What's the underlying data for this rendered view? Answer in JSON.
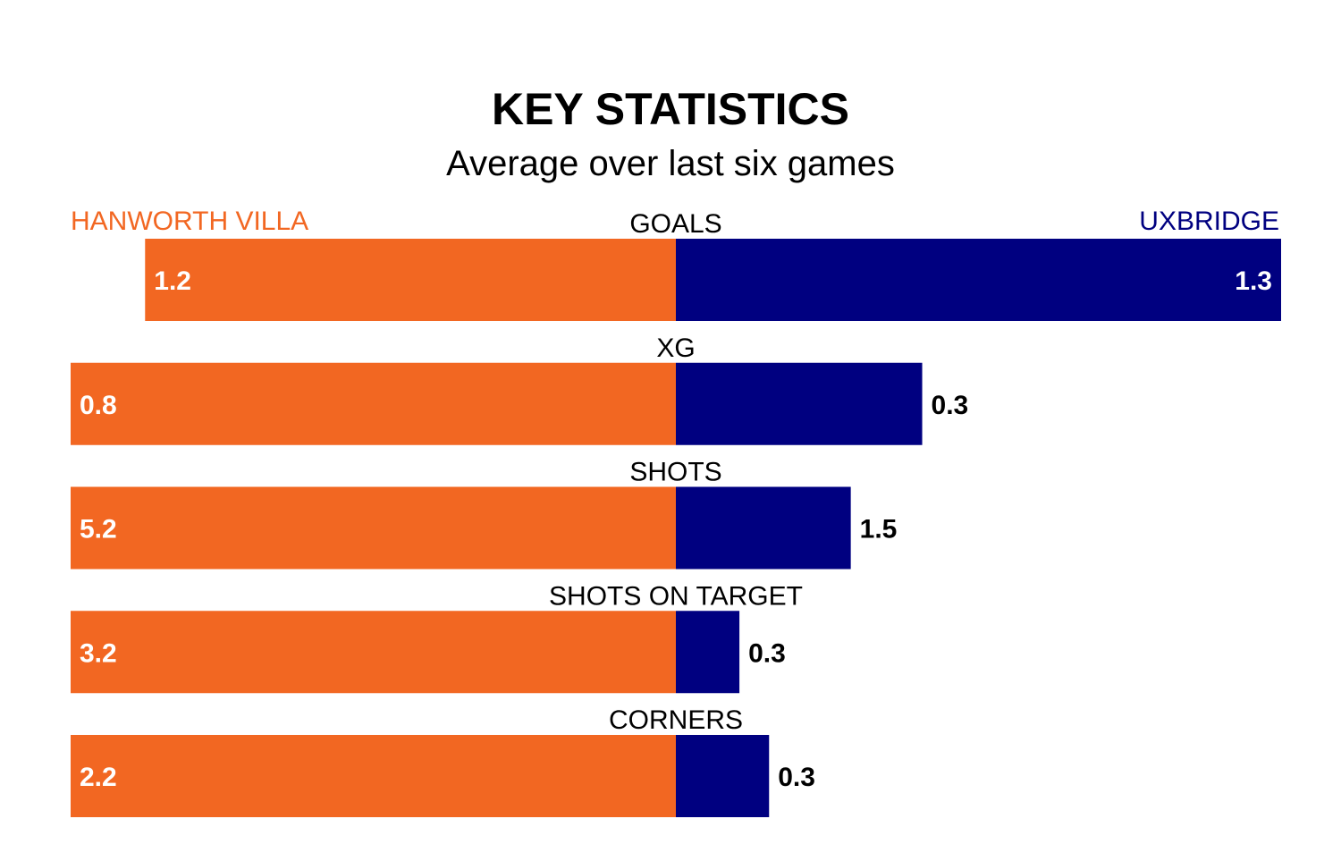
{
  "chart_data": {
    "type": "bar",
    "orientation": "diverging-horizontal",
    "title": "KEY STATISTICS",
    "subtitle": "Average over last six games",
    "categories": [
      "GOALS",
      "XG",
      "SHOTS",
      "SHOTS ON TARGET",
      "CORNERS"
    ],
    "series": [
      {
        "name": "HANWORTH VILLA",
        "color": "#f26722",
        "values": [
          1.2,
          0.8,
          5.2,
          3.2,
          2.2
        ],
        "labels": [
          "1.2",
          "0.8",
          "5.2",
          "3.2",
          "2.2"
        ]
      },
      {
        "name": "UXBRIDGE",
        "color": "#000080",
        "values": [
          1.3,
          0.3,
          1.5,
          0.3,
          0.3
        ],
        "labels": [
          "1.3",
          "0.3",
          "1.5",
          "0.3",
          "0.3"
        ]
      }
    ],
    "share_of_max_side": {
      "HANWORTH VILLA": [
        0.877,
        1.0,
        1.0,
        1.0,
        1.0
      ],
      "UXBRIDGE": [
        1.0,
        0.407,
        0.289,
        0.105,
        0.154
      ]
    },
    "grid": false,
    "legend": "top"
  }
}
